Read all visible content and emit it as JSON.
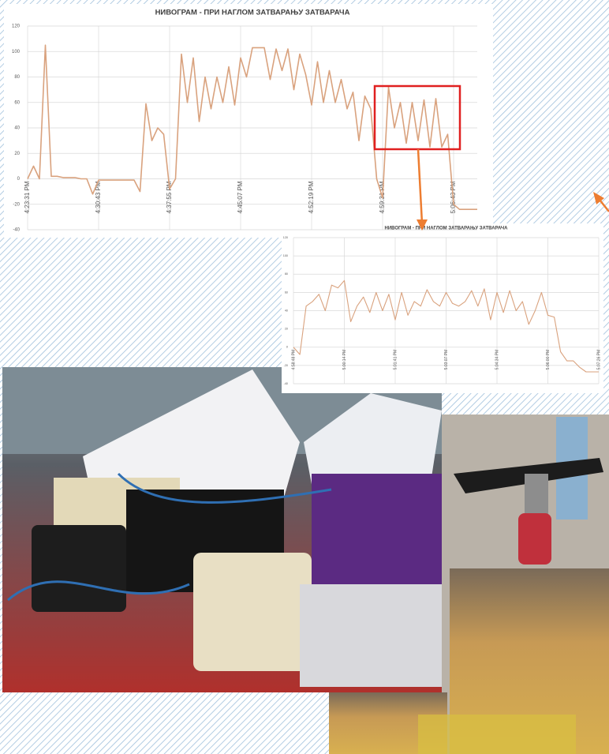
{
  "chart_data": [
    {
      "type": "line",
      "title": "НИВОГРАМ -  ПРИ НАГЛОМ ЗАТВАРАЊУ ЗАТВАРАЧА",
      "categories": [
        "4:23:31 PM",
        null,
        null,
        null,
        null,
        null,
        null,
        null,
        null,
        null,
        null,
        null,
        "4:30:43 PM",
        null,
        null,
        null,
        null,
        null,
        null,
        null,
        null,
        null,
        null,
        null,
        "4:37:55 PM",
        null,
        null,
        null,
        null,
        null,
        null,
        null,
        null,
        null,
        null,
        null,
        "4:45:07 PM",
        null,
        null,
        null,
        null,
        null,
        null,
        null,
        null,
        null,
        null,
        null,
        "4:52:19 PM",
        null,
        null,
        null,
        null,
        null,
        null,
        null,
        null,
        null,
        null,
        null,
        "4:59:31 PM",
        null,
        null,
        null,
        null,
        null,
        null,
        null,
        null,
        null,
        null,
        null,
        "5:06:43 PM",
        null,
        null,
        null,
        null
      ],
      "values": [
        0,
        10,
        0,
        105,
        2,
        2,
        1,
        1,
        1,
        0,
        0,
        -12,
        -1,
        -1,
        -1,
        -1,
        -1,
        -1,
        -1,
        -10,
        59,
        30,
        40,
        35,
        -8,
        0,
        98,
        60,
        95,
        45,
        80,
        55,
        80,
        60,
        88,
        58,
        95,
        80,
        103,
        103,
        103,
        78,
        102,
        85,
        102,
        70,
        98,
        82,
        58,
        92,
        60,
        85,
        60,
        78,
        55,
        68,
        30,
        65,
        55,
        0,
        -15,
        72,
        40,
        60,
        28,
        60,
        30,
        62,
        25,
        63,
        25,
        35,
        -20,
        -24,
        -24,
        -24,
        -24
      ],
      "color": "#d9a27e",
      "ylim": [
        -40,
        120
      ],
      "yticks": [
        -40,
        -20,
        0,
        20,
        40,
        60,
        80,
        100,
        120
      ],
      "grid": true
    },
    {
      "type": "line",
      "title": "НИВОГРАМ -  ПРИ НАГЛОМ ЗАТВАРАЊУ ЗАТВАРАЧА",
      "categories": [
        "4:58:48 PM",
        null,
        null,
        null,
        null,
        null,
        null,
        null,
        "5:00:14 PM",
        null,
        null,
        null,
        null,
        null,
        null,
        null,
        "5:01:41 PM",
        null,
        null,
        null,
        null,
        null,
        null,
        null,
        "5:03:07 PM",
        null,
        null,
        null,
        null,
        null,
        null,
        null,
        "5:04:34 PM",
        null,
        null,
        null,
        null,
        null,
        null,
        null,
        "5:06:00 PM",
        null,
        null,
        null,
        null,
        null,
        null,
        null,
        "5:07:26 PM"
      ],
      "values": [
        0,
        -8,
        45,
        50,
        58,
        40,
        68,
        65,
        73,
        28,
        45,
        55,
        38,
        60,
        40,
        58,
        30,
        60,
        35,
        50,
        45,
        63,
        50,
        45,
        60,
        48,
        45,
        50,
        62,
        45,
        64,
        30,
        60,
        38,
        62,
        40,
        50,
        25,
        40,
        60,
        35,
        33,
        -5,
        -15,
        -15,
        -22,
        -27,
        -27,
        -27
      ],
      "color": "#d9a27e",
      "ylim": [
        -40,
        120
      ],
      "yticks": [
        -40,
        -20,
        0,
        20,
        40,
        60,
        80,
        100,
        120
      ],
      "grid": true
    }
  ]
}
